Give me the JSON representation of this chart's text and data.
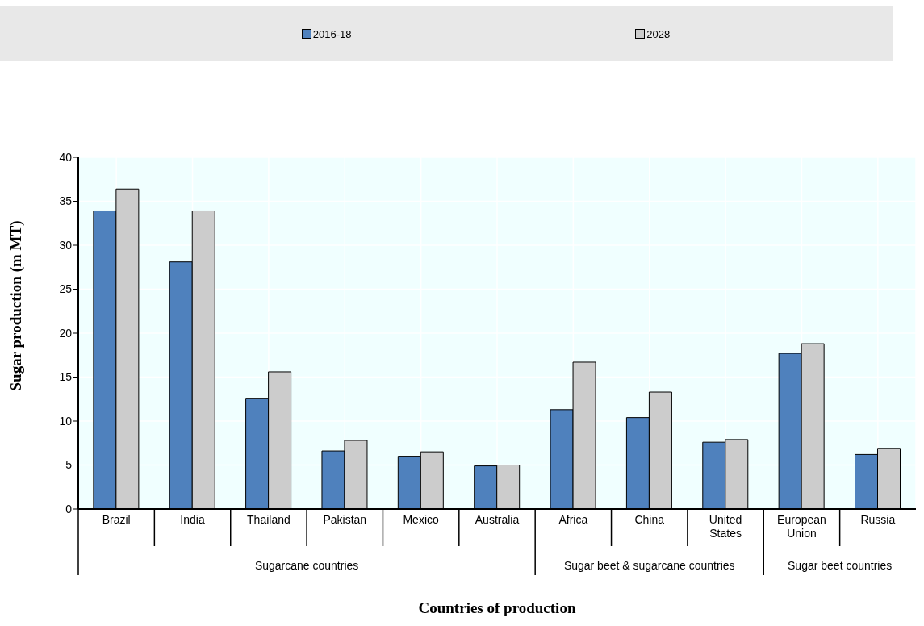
{
  "chart_data": {
    "type": "bar",
    "xlabel": "Countries of production",
    "ylabel": "Sugar production (m MT)",
    "categories": [
      "Brazil",
      "India",
      "Thailand",
      "Pakistan",
      "Mexico",
      "Australia",
      "Africa",
      "China",
      "United States",
      "European Union",
      "Russia"
    ],
    "series": [
      {
        "name": "2016-18",
        "color": "#4f81bd",
        "values": [
          33.9,
          28.1,
          12.6,
          6.6,
          6.0,
          4.9,
          11.3,
          10.4,
          7.6,
          17.7,
          6.2
        ]
      },
      {
        "name": "2028",
        "color": "#cccccc",
        "values": [
          36.4,
          33.9,
          15.6,
          7.8,
          6.5,
          5.0,
          16.7,
          13.3,
          7.9,
          18.8,
          6.9
        ]
      }
    ],
    "ylim": [
      0,
      40
    ],
    "yticks": [
      0,
      5,
      10,
      15,
      20,
      25,
      30,
      35,
      40
    ],
    "grid": true,
    "legend": "top",
    "annotations": [
      "Sugarcane countries",
      "Sugar beet & sugarcane countries",
      "Sugar beet countries"
    ]
  }
}
